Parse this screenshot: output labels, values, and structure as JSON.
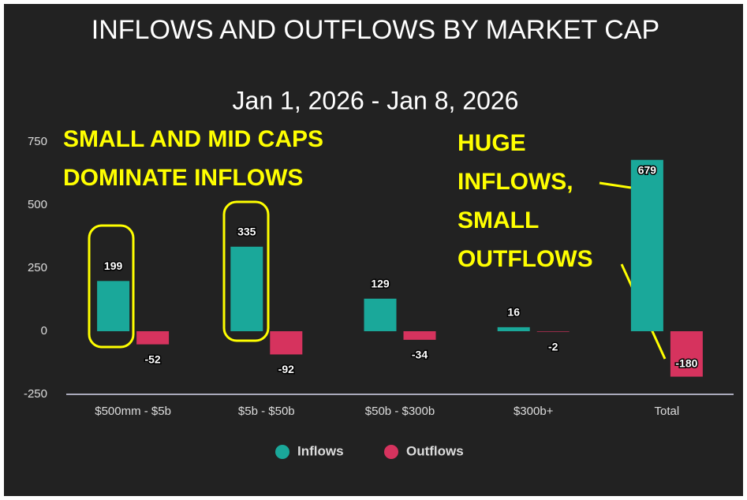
{
  "chart_data": {
    "type": "bar",
    "title": "INFLOWS AND OUTFLOWS BY MARKET CAP",
    "subtitle": "Jan 1, 2026 - Jan 8, 2026",
    "categories": [
      "$500mm - $5b",
      "$5b - $50b",
      "$50b - $300b",
      "$300b+",
      "Total"
    ],
    "series": [
      {
        "name": "Inflows",
        "color": "#1aa89a",
        "values": [
          199,
          335,
          129,
          16,
          679
        ]
      },
      {
        "name": "Outflows",
        "color": "#d6335e",
        "values": [
          -52,
          -92,
          -34,
          -2,
          -180
        ]
      }
    ],
    "ylim": [
      -250,
      750
    ],
    "yticks": [
      -250,
      0,
      250,
      500,
      750
    ],
    "grid": false,
    "legend": "bottom",
    "annotations": [
      {
        "lines": [
          "SMALL AND MID CAPS",
          "DOMINATE INFLOWS"
        ]
      },
      {
        "lines": [
          "HUGE",
          "INFLOWS,",
          "SMALL",
          "OUTFLOWS"
        ]
      }
    ]
  }
}
